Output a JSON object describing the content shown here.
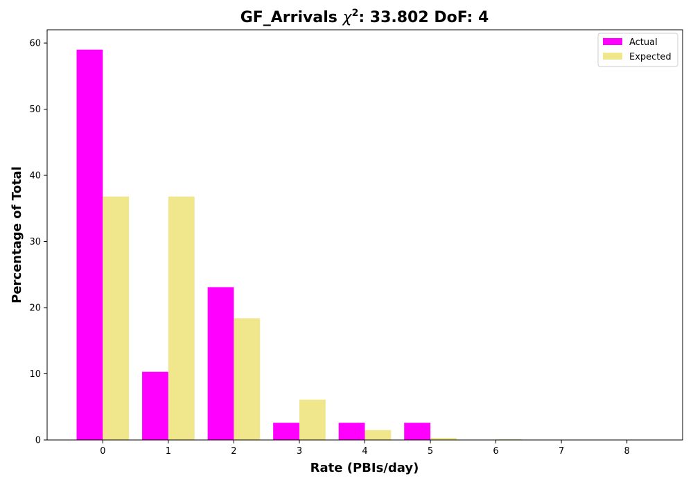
{
  "chart_data": {
    "type": "bar",
    "title": "GF_Arrivals χ²: 33.802 DoF: 4",
    "title_parts": {
      "prefix": "GF_Arrivals ",
      "chi": "χ",
      "sup": "2",
      "suffix": ": 33.802 DoF: 4"
    },
    "xlabel": "Rate (PBIs/day)",
    "ylabel": "Percentage of Total",
    "categories": [
      "0",
      "1",
      "2",
      "3",
      "4",
      "5",
      "6",
      "7",
      "8"
    ],
    "x_ticks": [
      0,
      1,
      2,
      3,
      4,
      5,
      6,
      7,
      8
    ],
    "xlim": [
      -0.85,
      8.85
    ],
    "ylim": [
      0,
      62
    ],
    "y_ticks": [
      0,
      10,
      20,
      30,
      40,
      50,
      60
    ],
    "grid": false,
    "legend_placement": "top-right",
    "series": [
      {
        "name": "Actual",
        "color": "#ff00ff",
        "values": [
          59.0,
          10.3,
          23.1,
          2.6,
          2.6,
          2.6,
          0,
          0,
          0
        ]
      },
      {
        "name": "Expected",
        "color": "#f0e68c",
        "values": [
          36.8,
          36.8,
          18.4,
          6.1,
          1.5,
          0.3,
          0.1,
          0,
          0
        ]
      }
    ]
  }
}
